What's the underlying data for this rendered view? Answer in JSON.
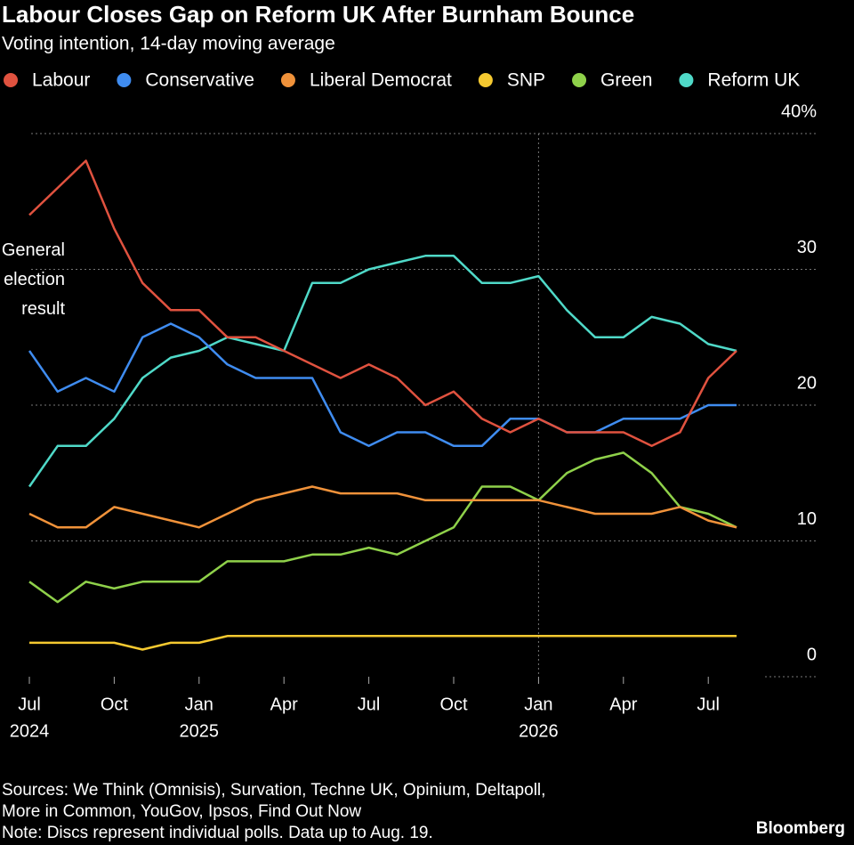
{
  "chart_data": {
    "type": "line",
    "title": "Labour Closes Gap on Reform UK After Burnham Bounce",
    "subtitle": "Voting intention, 14-day moving average",
    "x": [
      "2024-07",
      "2024-08",
      "2024-09",
      "2024-10",
      "2024-11",
      "2024-12",
      "2025-01",
      "2025-02",
      "2025-03",
      "2025-04",
      "2025-05",
      "2025-06",
      "2025-07",
      "2025-08",
      "2025-09",
      "2025-10",
      "2025-11",
      "2025-12",
      "2026-01",
      "2026-02",
      "2026-03",
      "2026-04",
      "2026-05",
      "2026-06",
      "2026-07",
      "2026-08"
    ],
    "series": [
      {
        "name": "Labour",
        "color": "#e0523f",
        "values": [
          34,
          36,
          38,
          33,
          29,
          27,
          27,
          25,
          25,
          24,
          23,
          22,
          23,
          22,
          20,
          21,
          19,
          18,
          19,
          18,
          18,
          18,
          17,
          18,
          22,
          24
        ]
      },
      {
        "name": "Conservative",
        "color": "#3f8cf0",
        "values": [
          24,
          21,
          22,
          21,
          25,
          26,
          25,
          23,
          22,
          22,
          22,
          18,
          17,
          18,
          18,
          17,
          17,
          19,
          19,
          18,
          18,
          19,
          19,
          19,
          20,
          20
        ]
      },
      {
        "name": "Liberal Democrat",
        "color": "#f0923a",
        "values": [
          12,
          11,
          11,
          12.5,
          12,
          11.5,
          11,
          12,
          13,
          13.5,
          14,
          13.5,
          13.5,
          13.5,
          13,
          13,
          13,
          13,
          13,
          12.5,
          12,
          12,
          12,
          12.5,
          11.5,
          11
        ]
      },
      {
        "name": "SNP",
        "color": "#f5c930",
        "values": [
          2.5,
          2.5,
          2.5,
          2.5,
          2,
          2.5,
          2.5,
          3,
          3,
          3,
          3,
          3,
          3,
          3,
          3,
          3,
          3,
          3,
          3,
          3,
          3,
          3,
          3,
          3,
          3,
          3
        ]
      },
      {
        "name": "Green",
        "color": "#8fd14a",
        "values": [
          7,
          5.5,
          7,
          6.5,
          7,
          7,
          7,
          8.5,
          8.5,
          8.5,
          9,
          9,
          9.5,
          9,
          10,
          11,
          14,
          14,
          13,
          15,
          16,
          16.5,
          15,
          12.5,
          12,
          11
        ]
      },
      {
        "name": "Reform UK",
        "color": "#4fd9c8",
        "values": [
          14,
          17,
          17,
          19,
          22,
          23.5,
          24,
          25,
          24.5,
          24,
          29,
          29,
          30,
          30.5,
          31,
          31,
          29,
          29,
          29.5,
          27,
          25,
          25,
          26.5,
          26,
          24.5,
          24
        ]
      }
    ],
    "xticks": [
      {
        "value": "2024-07",
        "label": "Jul"
      },
      {
        "value": "2024-10",
        "label": "Oct"
      },
      {
        "value": "2025-01",
        "label": "Jan"
      },
      {
        "value": "2025-04",
        "label": "Apr"
      },
      {
        "value": "2025-07",
        "label": "Jul"
      },
      {
        "value": "2025-10",
        "label": "Oct"
      },
      {
        "value": "2026-01",
        "label": "Jan"
      },
      {
        "value": "2026-04",
        "label": "Apr"
      },
      {
        "value": "2026-07",
        "label": "Jul"
      }
    ],
    "xtick_years": [
      {
        "value": "2024-07",
        "label": "2024"
      },
      {
        "value": "2025-01",
        "label": "2025"
      },
      {
        "value": "2026-01",
        "label": "2026"
      }
    ],
    "ylim": [
      0,
      40
    ],
    "yticks": [
      0,
      10,
      20,
      30,
      {
        "value": 40,
        "label": "40%"
      }
    ],
    "grid": true,
    "annotation": {
      "value": 30,
      "lines": [
        "General",
        "election",
        "result"
      ]
    },
    "sources": [
      "Sources: We Think (Omnisis), Survation, Techne UK, Opinium, Deltapoll,",
      "More in Common, YouGov, Ipsos, Find Out Now"
    ],
    "note": "Note: Discs represent individual polls. Data up to Aug. 19.",
    "brand": "Bloomberg"
  }
}
